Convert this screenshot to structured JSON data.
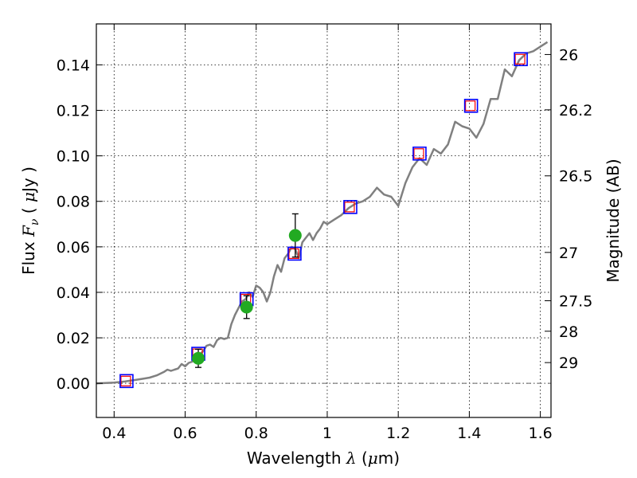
{
  "chart_data": {
    "type": "scatter",
    "xlabel": {
      "prefix": "Wavelength ",
      "symbol": "λ",
      "units_open": " (",
      "units_mu": "μ",
      "units_rest": "m)"
    },
    "ylabel": {
      "prefix": "Flux ",
      "symbol": "F",
      "subscript": "ν",
      "units_open": " ( ",
      "units_mu": "μ",
      "units_rest": "Jy )"
    },
    "ylabel_right": "Magnitude (AB)",
    "xlim": [
      0.35,
      1.63
    ],
    "ylim": [
      -0.015,
      0.158
    ],
    "grid": true,
    "x_ticks": [
      {
        "value": 0.4,
        "label": "0.4"
      },
      {
        "value": 0.6,
        "label": "0.6"
      },
      {
        "value": 0.8,
        "label": "0.8"
      },
      {
        "value": 1.0,
        "label": "1"
      },
      {
        "value": 1.2,
        "label": "1.2"
      },
      {
        "value": 1.4,
        "label": "1.4"
      },
      {
        "value": 1.6,
        "label": "1.6"
      }
    ],
    "y_ticks": [
      {
        "value": 0.0,
        "label": "0.00"
      },
      {
        "value": 0.02,
        "label": "0.02"
      },
      {
        "value": 0.04,
        "label": "0.04"
      },
      {
        "value": 0.06,
        "label": "0.06"
      },
      {
        "value": 0.08,
        "label": "0.08"
      },
      {
        "value": 0.1,
        "label": "0.10"
      },
      {
        "value": 0.12,
        "label": "0.12"
      },
      {
        "value": 0.14,
        "label": "0.14"
      }
    ],
    "mag_ticks": [
      {
        "value": 26,
        "label": "26"
      },
      {
        "value": 26.2,
        "label": "26.2"
      },
      {
        "value": 26.5,
        "label": "26.5"
      },
      {
        "value": 27,
        "label": "27"
      },
      {
        "value": 27.5,
        "label": "27.5"
      },
      {
        "value": 28,
        "label": "28"
      },
      {
        "value": 29,
        "label": "29"
      }
    ],
    "colors": {
      "sed_line": "#808080",
      "model_square": "#0000ff",
      "model_inner": "#ff0000",
      "detection": "#22aa22",
      "errorbar": "#000000",
      "zero_line": "#666666"
    },
    "sed_curve": {
      "x": [
        0.35,
        0.4,
        0.43,
        0.46,
        0.48,
        0.5,
        0.52,
        0.54,
        0.55,
        0.56,
        0.57,
        0.58,
        0.59,
        0.6,
        0.61,
        0.62,
        0.63,
        0.64,
        0.65,
        0.66,
        0.67,
        0.68,
        0.69,
        0.7,
        0.71,
        0.72,
        0.73,
        0.74,
        0.75,
        0.76,
        0.77,
        0.78,
        0.79,
        0.8,
        0.81,
        0.82,
        0.83,
        0.84,
        0.85,
        0.86,
        0.87,
        0.88,
        0.89,
        0.9,
        0.91,
        0.92,
        0.93,
        0.94,
        0.95,
        0.96,
        0.97,
        0.98,
        0.99,
        1.0,
        1.02,
        1.04,
        1.06,
        1.08,
        1.1,
        1.12,
        1.14,
        1.16,
        1.18,
        1.2,
        1.22,
        1.24,
        1.26,
        1.28,
        1.3,
        1.32,
        1.34,
        1.36,
        1.38,
        1.4,
        1.42,
        1.44,
        1.46,
        1.48,
        1.5,
        1.52,
        1.54,
        1.56,
        1.58,
        1.6,
        1.62
      ],
      "y": [
        0.0,
        0.0003,
        0.0008,
        0.0015,
        0.002,
        0.0025,
        0.0035,
        0.005,
        0.006,
        0.0055,
        0.006,
        0.0065,
        0.0085,
        0.0075,
        0.009,
        0.0095,
        0.011,
        0.0125,
        0.014,
        0.0165,
        0.017,
        0.016,
        0.019,
        0.02,
        0.0195,
        0.02,
        0.026,
        0.03,
        0.033,
        0.036,
        0.037,
        0.04,
        0.038,
        0.043,
        0.042,
        0.04,
        0.036,
        0.04,
        0.047,
        0.052,
        0.049,
        0.055,
        0.057,
        0.06,
        0.059,
        0.055,
        0.062,
        0.064,
        0.066,
        0.063,
        0.066,
        0.068,
        0.071,
        0.07,
        0.072,
        0.074,
        0.077,
        0.079,
        0.08,
        0.082,
        0.086,
        0.083,
        0.082,
        0.078,
        0.088,
        0.095,
        0.099,
        0.096,
        0.103,
        0.101,
        0.105,
        0.115,
        0.113,
        0.112,
        0.108,
        0.114,
        0.125,
        0.125,
        0.138,
        0.135,
        0.142,
        0.145,
        0.146,
        0.148,
        0.15
      ]
    },
    "model_points": [
      {
        "x": 0.435,
        "y": 0.001
      },
      {
        "x": 0.637,
        "y": 0.013
      },
      {
        "x": 0.773,
        "y": 0.037
      },
      {
        "x": 0.908,
        "y": 0.057
      },
      {
        "x": 1.065,
        "y": 0.0775
      },
      {
        "x": 1.26,
        "y": 0.101
      },
      {
        "x": 1.405,
        "y": 0.122
      },
      {
        "x": 1.545,
        "y": 0.1425
      }
    ],
    "detections": [
      {
        "x": 0.637,
        "y": 0.011,
        "yerr": 0.004
      },
      {
        "x": 0.773,
        "y": 0.0335,
        "yerr": 0.005
      },
      {
        "x": 0.91,
        "y": 0.065,
        "yerr": 0.0095
      }
    ]
  }
}
